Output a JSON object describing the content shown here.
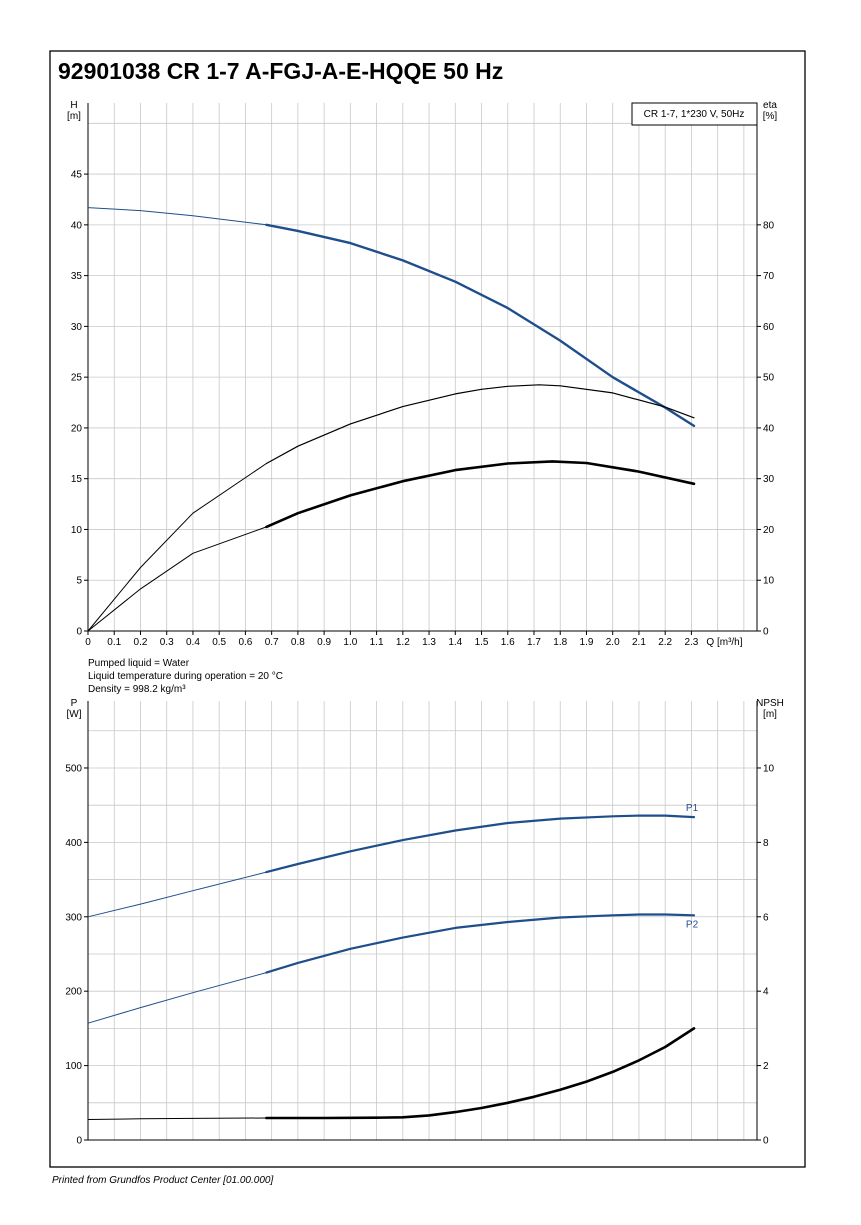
{
  "title": "92901038 CR 1-7 A-FGJ-A-E-HQQE 50 Hz",
  "footer": "Printed from Grundfos Product Center [01.00.000]",
  "colors": {
    "blue": "#1f4e8c",
    "black": "#000000",
    "grid": "#c8c8c8"
  },
  "chart_data": [
    {
      "type": "line",
      "legend_box": "CR 1-7, 1*230 V, 50Hz",
      "axis_left": {
        "label": "H",
        "unit": "[m]",
        "lim": [
          0,
          52
        ],
        "ticks": [
          0,
          5,
          10,
          15,
          20,
          25,
          30,
          35,
          40,
          45
        ]
      },
      "axis_right": {
        "label": "eta",
        "unit": "[%]",
        "lim": [
          0,
          104
        ],
        "ticks": [
          0,
          10,
          20,
          30,
          40,
          50,
          60,
          70,
          80
        ]
      },
      "axis_x": {
        "label": "Q [m³/h]",
        "lim": [
          0,
          2.55
        ],
        "ticks": [
          "0",
          "0.1",
          "0.2",
          "0.3",
          "0.4",
          "0.5",
          "0.6",
          "0.7",
          "0.8",
          "0.9",
          "1.0",
          "1.1",
          "1.2",
          "1.3",
          "1.4",
          "1.5",
          "1.6",
          "1.7",
          "1.8",
          "1.9",
          "2.0",
          "2.1",
          "2.2",
          "2.3"
        ]
      },
      "grid": true,
      "duty_start_q": 0.68,
      "series": [
        {
          "axis": "left",
          "color": "#1f4e8c",
          "style": "H curve",
          "x": [
            0,
            0.2,
            0.4,
            0.68,
            0.8,
            1.0,
            1.2,
            1.4,
            1.6,
            1.8,
            2.0,
            2.2,
            2.31
          ],
          "y": [
            41.7,
            41.4,
            40.9,
            40.0,
            39.4,
            38.2,
            36.5,
            34.4,
            31.8,
            28.6,
            25.0,
            22.0,
            20.2
          ]
        },
        {
          "axis": "right",
          "color": "#000000",
          "style": "eta curve",
          "x": [
            0,
            0.2,
            0.4,
            0.68,
            0.8,
            1.0,
            1.2,
            1.4,
            1.5,
            1.6,
            1.72,
            1.8,
            2.0,
            2.2,
            2.31
          ],
          "y": [
            0,
            12.5,
            23.2,
            33.0,
            36.4,
            40.8,
            44.2,
            46.7,
            47.6,
            48.2,
            48.5,
            48.3,
            46.9,
            44.1,
            42.0
          ]
        },
        {
          "axis": "right",
          "color": "#000000",
          "style": "eta curve",
          "x": [
            0,
            0.2,
            0.4,
            0.68,
            0.8,
            1.0,
            1.2,
            1.4,
            1.6,
            1.77,
            1.9,
            2.1,
            2.31
          ],
          "y": [
            0,
            8.3,
            15.3,
            20.5,
            23.2,
            26.7,
            29.5,
            31.7,
            33.0,
            33.4,
            33.1,
            31.4,
            29.0
          ]
        }
      ]
    },
    {
      "type": "line",
      "notes": [
        "Pumped liquid = Water",
        "Liquid temperature during operation = 20 °C",
        "Density = 998.2 kg/m³"
      ],
      "axis_left": {
        "label": "P",
        "unit": "[W]",
        "lim": [
          0,
          590
        ],
        "ticks": [
          0,
          100,
          200,
          300,
          400,
          500
        ]
      },
      "axis_right": {
        "label": "NPSH",
        "unit": "[m]",
        "lim": [
          0,
          11.8
        ],
        "ticks": [
          0,
          2,
          4,
          6,
          8,
          10
        ]
      },
      "axis_x": {
        "lim": [
          0,
          2.55
        ]
      },
      "grid": true,
      "duty_start_q": 0.68,
      "series": [
        {
          "name": "P1",
          "axis": "left",
          "color": "#1f4e8c",
          "x": [
            0,
            0.2,
            0.4,
            0.68,
            0.8,
            1.0,
            1.2,
            1.4,
            1.6,
            1.8,
            2.0,
            2.1,
            2.2,
            2.31
          ],
          "y": [
            300,
            317,
            335,
            360,
            371,
            388,
            403,
            416,
            426,
            432,
            435,
            436,
            436,
            434
          ]
        },
        {
          "name": "P2",
          "axis": "left",
          "color": "#1f4e8c",
          "x": [
            0,
            0.2,
            0.4,
            0.68,
            0.8,
            1.0,
            1.2,
            1.4,
            1.6,
            1.8,
            2.0,
            2.1,
            2.2,
            2.31
          ],
          "y": [
            157,
            178,
            198,
            225,
            238,
            257,
            272,
            285,
            293,
            299,
            302,
            303,
            303,
            302
          ]
        },
        {
          "axis": "right",
          "color": "#000000",
          "style": "NPSH curve",
          "x": [
            0,
            0.2,
            0.4,
            0.68,
            0.9,
            1.1,
            1.2,
            1.3,
            1.4,
            1.5,
            1.6,
            1.7,
            1.8,
            1.9,
            2.0,
            2.1,
            2.2,
            2.31
          ],
          "y": [
            0.55,
            0.57,
            0.58,
            0.59,
            0.59,
            0.6,
            0.61,
            0.66,
            0.75,
            0.86,
            1.0,
            1.16,
            1.35,
            1.57,
            1.83,
            2.14,
            2.5,
            3.0
          ]
        }
      ]
    }
  ]
}
